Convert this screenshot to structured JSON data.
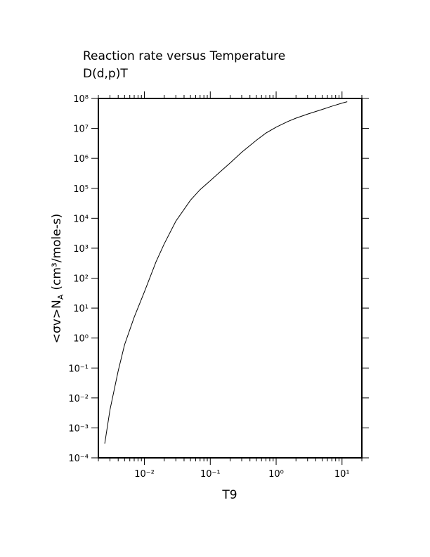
{
  "chart_data": {
    "type": "line",
    "title": "Reaction rate versus Temperature",
    "subtitle": "D(d,p)T",
    "x_label": "T9",
    "y_label": {
      "text": "<σv>N",
      "subscript": "A",
      "units": "(cm³/mole-s)"
    },
    "log_x": true,
    "log_y": true,
    "xlim": [
      0.002,
      20
    ],
    "ylim": [
      0.0001,
      100000000
    ],
    "xticks": [
      {
        "value": 0.01,
        "label": "10⁻²"
      },
      {
        "value": 0.1,
        "label": "10⁻¹"
      },
      {
        "value": 1,
        "label": "10⁰"
      },
      {
        "value": 10,
        "label": "10¹"
      }
    ],
    "yticks": [
      {
        "value": 0.0001,
        "label": "10⁻⁴"
      },
      {
        "value": 0.001,
        "label": "10⁻³"
      },
      {
        "value": 0.01,
        "label": "10⁻²"
      },
      {
        "value": 0.1,
        "label": "10⁻¹"
      },
      {
        "value": 1,
        "label": "10⁰"
      },
      {
        "value": 10,
        "label": "10¹"
      },
      {
        "value": 100,
        "label": "10²"
      },
      {
        "value": 1000,
        "label": "10³"
      },
      {
        "value": 10000,
        "label": "10⁴"
      },
      {
        "value": 100000,
        "label": "10⁵"
      },
      {
        "value": 1000000,
        "label": "10⁶"
      },
      {
        "value": 10000000,
        "label": "10⁷"
      },
      {
        "value": 100000000,
        "label": "10⁸"
      }
    ],
    "x": [
      0.0025,
      0.003,
      0.004,
      0.005,
      0.007,
      0.01,
      0.015,
      0.02,
      0.03,
      0.05,
      0.07,
      0.1,
      0.15,
      0.2,
      0.3,
      0.5,
      0.7,
      1,
      1.5,
      2,
      3,
      5,
      7,
      10,
      12
    ],
    "series": [
      {
        "color": "#000000",
        "values": [
          0.0003,
          0.004,
          0.08,
          0.6,
          5,
          35,
          350,
          1400,
          8000,
          40000,
          90000,
          180000,
          400000,
          700000,
          1600000,
          4000000,
          7000000,
          11000000,
          17000000,
          22000000,
          30000000,
          43000000,
          55000000,
          70000000,
          78000000
        ]
      }
    ]
  }
}
